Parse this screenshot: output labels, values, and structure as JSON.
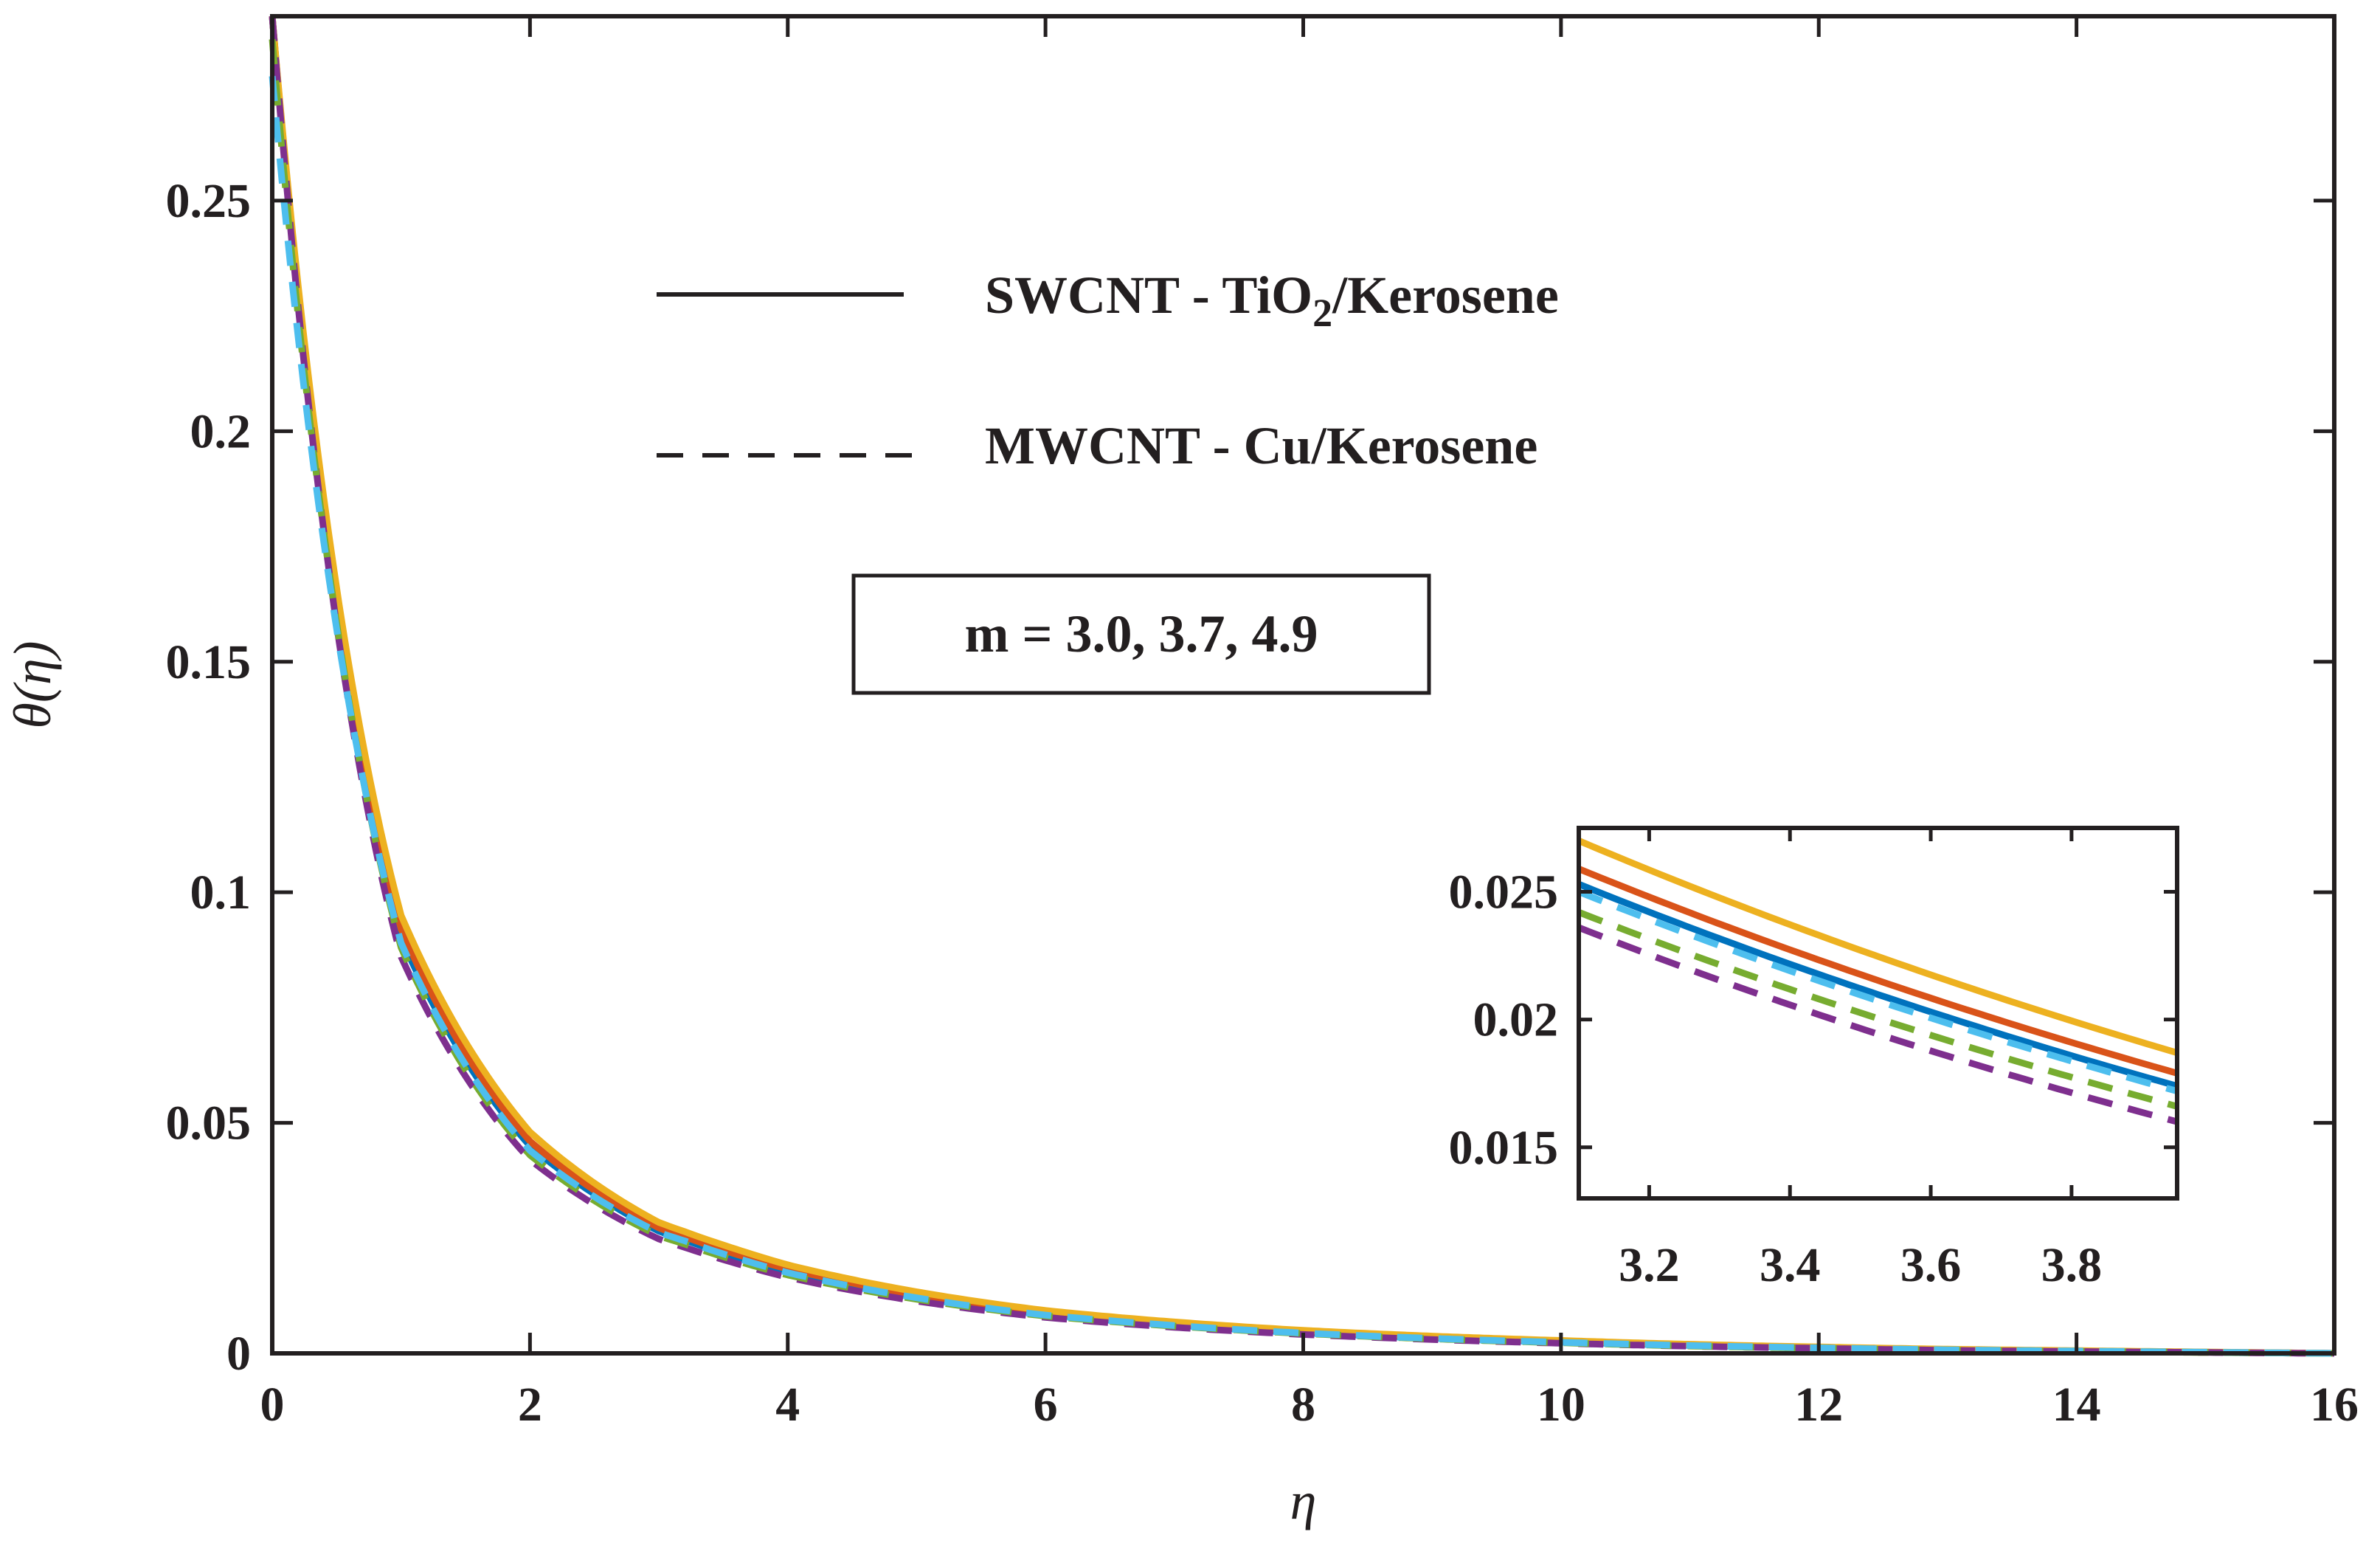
{
  "chart_data": [
    {
      "type": "line",
      "role": "main",
      "title": "",
      "xlabel": "η",
      "ylabel": "θ(η)",
      "xlim": [
        0,
        16
      ],
      "ylim": [
        0,
        0.29
      ],
      "xticks": [
        0,
        2,
        4,
        6,
        8,
        10,
        12,
        14,
        16
      ],
      "xtick_labels": [
        "0",
        "2",
        "4",
        "6",
        "8",
        "10",
        "12",
        "14",
        "16"
      ],
      "yticks": [
        0,
        0.05,
        0.1,
        0.15,
        0.2,
        0.25
      ],
      "ytick_labels": [
        "0",
        "0.05",
        "0.1",
        "0.15",
        "0.2",
        "0.25"
      ],
      "grid": false,
      "legend": {
        "position": "top-center",
        "entries": [
          {
            "style": "solid",
            "label_main": "SWCNT - TiO",
            "label_sub": "2",
            "label_tail": "/Kerosene"
          },
          {
            "style": "dashed",
            "label": "MWCNT - Cu/Kerosene"
          }
        ]
      },
      "annotation": "m = 3.0, 3.7, 4.9",
      "series": [
        {
          "name": "SWCNT-TiO2/Kerosene m=3.0",
          "style": "solid",
          "color": "#0072bd",
          "theta0": 0.29,
          "x": [
            0,
            1,
            2,
            3,
            3.2,
            3.6,
            4,
            6,
            8,
            10,
            12,
            14,
            16
          ],
          "y": [
            0.29,
            0.09,
            0.045,
            0.0265,
            0.0246,
            0.0209,
            0.0178,
            0.0085,
            0.0045,
            0.0025,
            0.0012,
            0.0005,
            0.0
          ]
        },
        {
          "name": "SWCNT-TiO2/Kerosene m=3.7",
          "style": "solid",
          "color": "#d95319",
          "theta0": 0.29,
          "x": [
            0,
            1,
            2,
            3,
            3.2,
            3.6,
            4,
            6,
            8,
            10,
            12,
            14,
            16
          ],
          "y": [
            0.29,
            0.092,
            0.046,
            0.0272,
            0.0253,
            0.0215,
            0.0183,
            0.0088,
            0.0047,
            0.0026,
            0.0013,
            0.0005,
            0.0
          ]
        },
        {
          "name": "SWCNT-TiO2/Kerosene m=4.9",
          "style": "solid",
          "color": "#edb120",
          "theta0": 0.29,
          "x": [
            0,
            1,
            2,
            3,
            3.2,
            3.6,
            4,
            6,
            8,
            10,
            12,
            14,
            16
          ],
          "y": [
            0.29,
            0.095,
            0.048,
            0.0284,
            0.0264,
            0.0226,
            0.0192,
            0.0093,
            0.005,
            0.0028,
            0.0014,
            0.0006,
            0.0
          ]
        },
        {
          "name": "MWCNT-Cu/Kerosene m=3.0",
          "style": "dashed",
          "color": "#7e2f8e",
          "theta0": 0.29,
          "x": [
            0,
            1,
            2,
            3,
            3.2,
            3.6,
            4,
            6,
            8,
            10,
            12,
            14,
            16
          ],
          "y": [
            0.29,
            0.086,
            0.042,
            0.0248,
            0.023,
            0.0195,
            0.0165,
            0.0078,
            0.0041,
            0.0022,
            0.0011,
            0.0004,
            0.0
          ]
        },
        {
          "name": "MWCNT-Cu/Kerosene m=3.7",
          "style": "dashed",
          "color": "#77ac30",
          "theta0": 0.285,
          "x": [
            0,
            1,
            2,
            3,
            3.2,
            3.6,
            4,
            6,
            8,
            10,
            12,
            14,
            16
          ],
          "y": [
            0.285,
            0.088,
            0.043,
            0.0255,
            0.0237,
            0.0201,
            0.017,
            0.0081,
            0.0043,
            0.0023,
            0.0011,
            0.0004,
            0.0
          ]
        },
        {
          "name": "MWCNT-Cu/Kerosene m=4.9",
          "style": "dashed",
          "color": "#4dbeee",
          "theta0": 0.277,
          "x": [
            0,
            1,
            2,
            3,
            3.2,
            3.6,
            4,
            6,
            8,
            10,
            12,
            14,
            16
          ],
          "y": [
            0.277,
            0.089,
            0.044,
            0.0262,
            0.0244,
            0.0207,
            0.0175,
            0.0083,
            0.0044,
            0.0024,
            0.0012,
            0.0005,
            0.0
          ]
        }
      ]
    },
    {
      "type": "line",
      "role": "inset",
      "xlim": [
        3.1,
        3.95
      ],
      "ylim": [
        0.013,
        0.0275
      ],
      "xticks": [
        3.2,
        3.4,
        3.6,
        3.8
      ],
      "xtick_labels": [
        "3.2",
        "3.4",
        "3.6",
        "3.8"
      ],
      "yticks": [
        0.015,
        0.02,
        0.025
      ],
      "ytick_labels": [
        "0.015",
        "0.02",
        "0.025"
      ],
      "series": [
        {
          "name": "SWCNT-TiO2/Kerosene m=3.0",
          "style": "solid",
          "color": "#0072bd",
          "x": [
            3.1,
            3.95
          ],
          "y": [
            0.0253,
            0.0174
          ]
        },
        {
          "name": "SWCNT-TiO2/Kerosene m=3.7",
          "style": "solid",
          "color": "#d95319",
          "x": [
            3.1,
            3.95
          ],
          "y": [
            0.0259,
            0.0179
          ]
        },
        {
          "name": "SWCNT-TiO2/Kerosene m=4.9",
          "style": "solid",
          "color": "#edb120",
          "x": [
            3.1,
            3.95
          ],
          "y": [
            0.027,
            0.0187
          ]
        },
        {
          "name": "MWCNT-Cu/Kerosene m=3.0",
          "style": "dashed",
          "color": "#7e2f8e",
          "x": [
            3.1,
            3.95
          ],
          "y": [
            0.0236,
            0.016
          ]
        },
        {
          "name": "MWCNT-Cu/Kerosene m=3.7",
          "style": "dashed",
          "color": "#77ac30",
          "x": [
            3.1,
            3.95
          ],
          "y": [
            0.0242,
            0.0166
          ]
        },
        {
          "name": "MWCNT-Cu/Kerosene m=4.9",
          "style": "dashed",
          "color": "#4dbeee",
          "x": [
            3.1,
            3.95
          ],
          "y": [
            0.025,
            0.0172
          ]
        }
      ]
    }
  ]
}
